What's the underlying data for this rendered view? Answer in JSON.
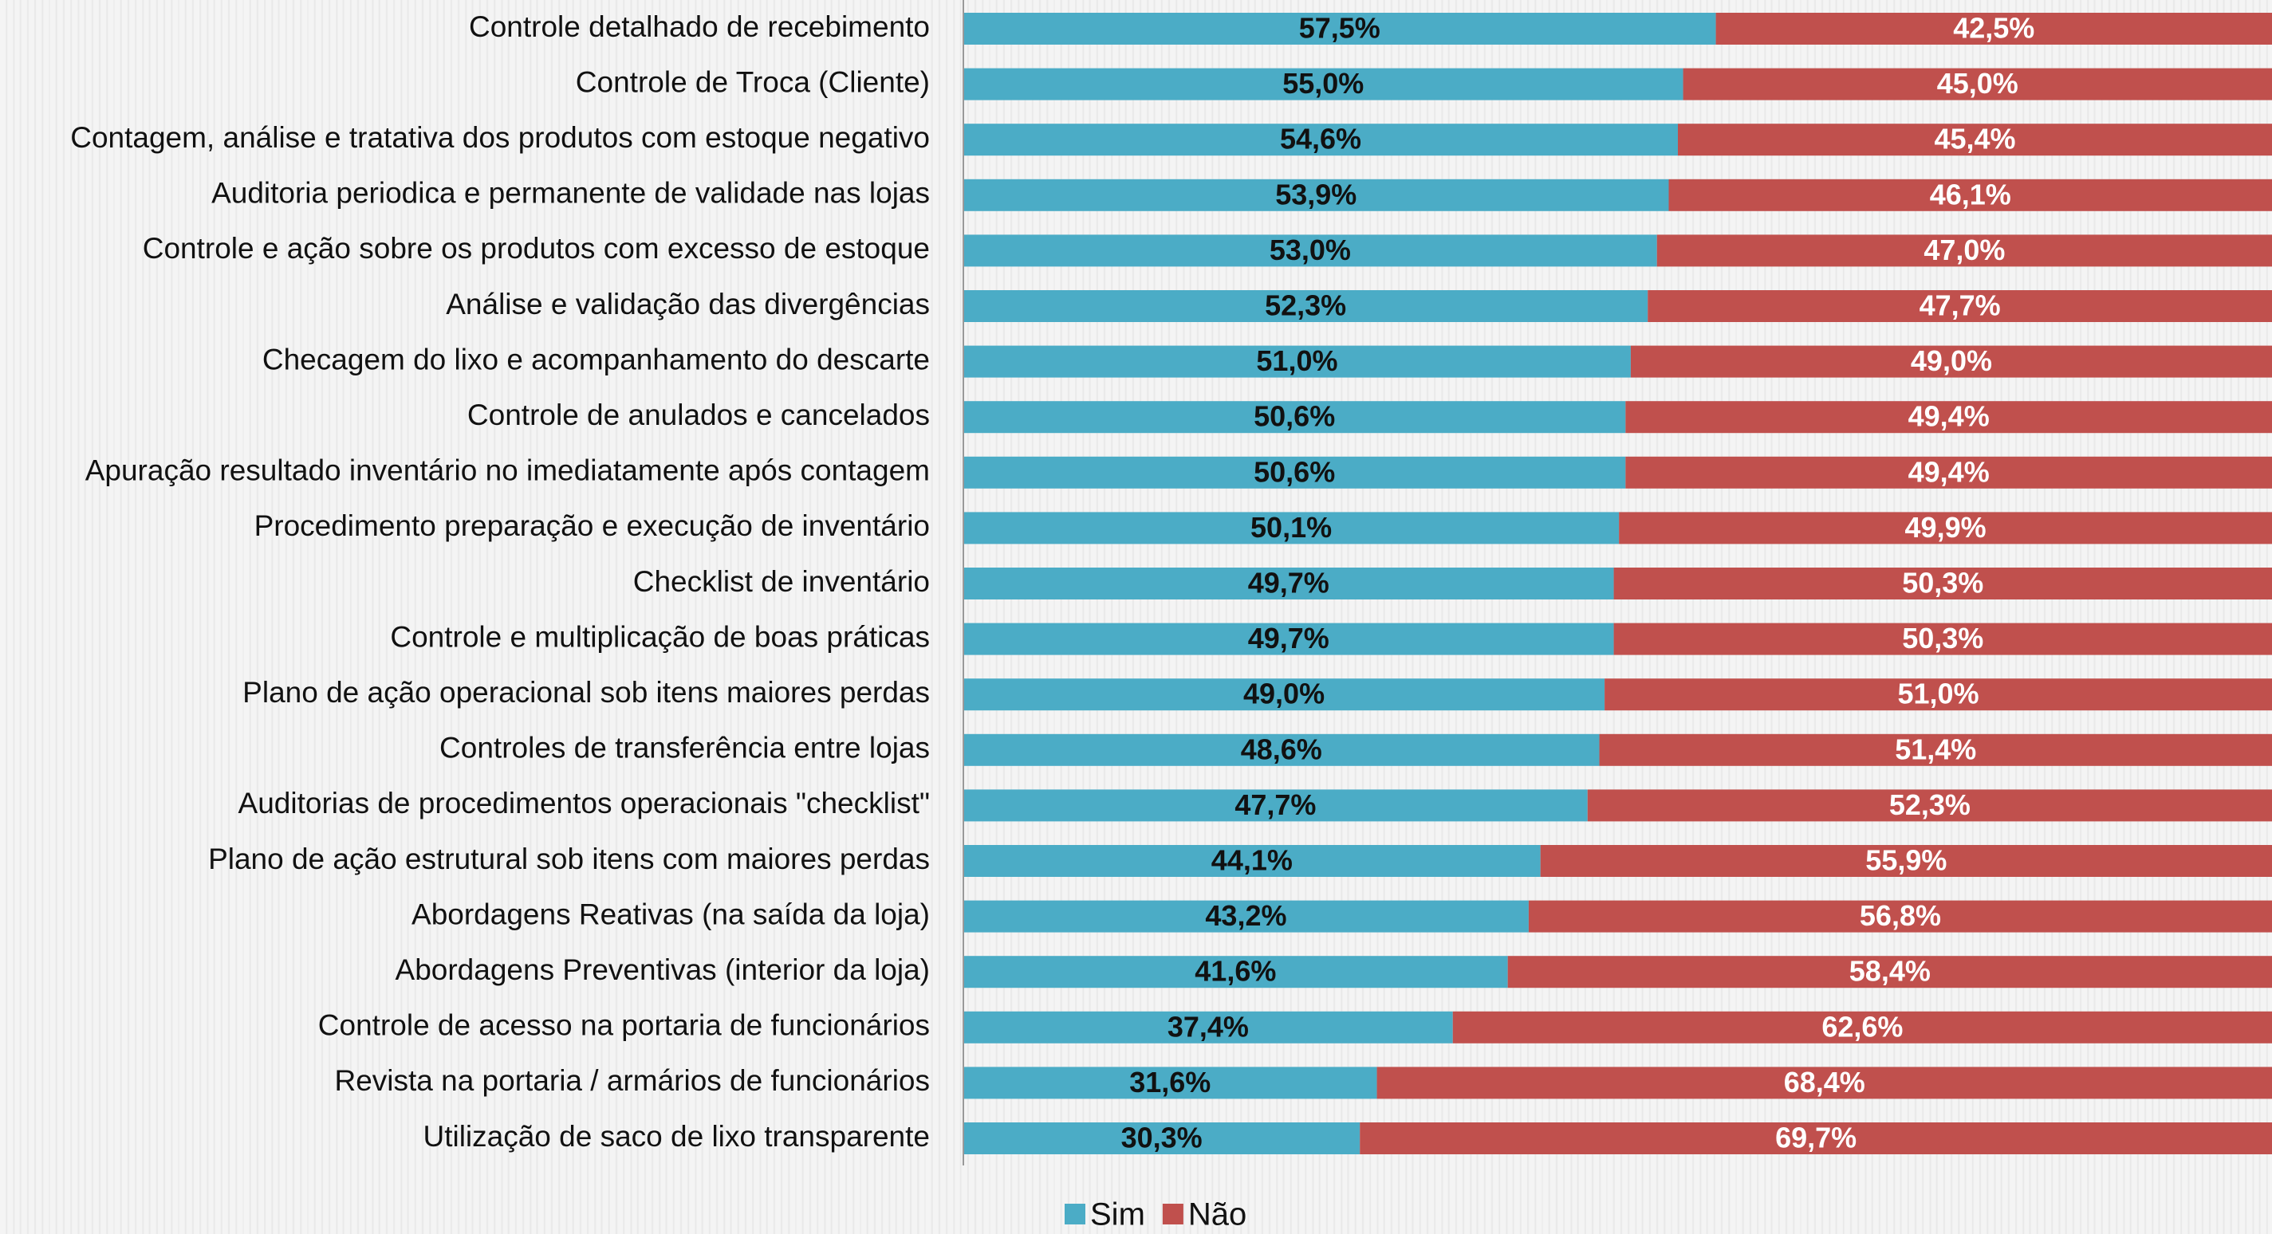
{
  "chart_data": {
    "type": "stacked_barh",
    "categories": [
      "Controle detalhado de recebimento",
      "Controle de Troca (Cliente)",
      "Contagem, análise e tratativa dos produtos com estoque negativo",
      "Auditoria periodica e permanente de validade nas lojas",
      "Controle e ação sobre os produtos com excesso de estoque",
      "Análise e validação das divergências",
      "Checagem do lixo e acompanhamento do descarte",
      "Controle de anulados e cancelados",
      "Apuração resultado inventário no imediatamente após contagem",
      "Procedimento preparação e execução de inventário",
      "Checklist de inventário",
      "Controle e multiplicação de boas práticas",
      "Plano de ação operacional sob itens maiores perdas",
      "Controles de transferência entre lojas",
      "Auditorias de procedimentos operacionais \"checklist\"",
      "Plano de ação estrutural sob itens com maiores perdas",
      "Abordagens Reativas (na saída da loja)",
      "Abordagens Preventivas (interior da loja)",
      "Controle de acesso na portaria de funcionários",
      "Revista na portaria / armários de funcionários",
      "Utilização de saco de lixo transparente"
    ],
    "series": [
      {
        "name": "Sim",
        "color": "#4bacc6",
        "values": [
          57.5,
          55.0,
          54.6,
          53.9,
          53.0,
          52.3,
          51.0,
          50.6,
          50.6,
          50.1,
          49.7,
          49.7,
          49.0,
          48.6,
          47.7,
          44.1,
          43.2,
          41.6,
          37.4,
          31.6,
          30.3
        ],
        "value_labels": [
          "57,5%",
          "55,0%",
          "54,6%",
          "53,9%",
          "53,0%",
          "52,3%",
          "51,0%",
          "50,6%",
          "50,6%",
          "50,1%",
          "49,7%",
          "49,7%",
          "49,0%",
          "48,6%",
          "47,7%",
          "44,1%",
          "43,2%",
          "41,6%",
          "37,4%",
          "31,6%",
          "30,3%"
        ]
      },
      {
        "name": "Não",
        "color": "#c0504d",
        "values": [
          42.5,
          45.0,
          45.4,
          46.1,
          47.0,
          47.7,
          49.0,
          49.4,
          49.4,
          49.9,
          50.3,
          50.3,
          51.0,
          51.4,
          52.3,
          55.9,
          56.8,
          58.4,
          62.6,
          68.4,
          69.7
        ],
        "value_labels": [
          "42,5%",
          "45,0%",
          "45,4%",
          "46,1%",
          "47,0%",
          "47,7%",
          "49,0%",
          "49,4%",
          "49,4%",
          "49,9%",
          "50,3%",
          "50,3%",
          "51,0%",
          "51,4%",
          "52,3%",
          "55,9%",
          "56,8%",
          "58,4%",
          "62,6%",
          "68,4%",
          "69,7%"
        ]
      }
    ],
    "xlim": [
      0,
      100
    ],
    "legend": "bottom"
  }
}
